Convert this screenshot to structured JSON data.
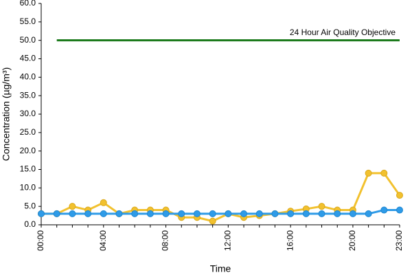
{
  "chart_data": {
    "type": "line",
    "x_label": "Time",
    "y_label": "Concentration (µg/m³)",
    "categories": [
      "00:00",
      null,
      null,
      null,
      "04:00",
      null,
      null,
      null,
      "08:00",
      null,
      null,
      null,
      "12:00",
      null,
      null,
      null,
      "16:00",
      null,
      null,
      null,
      "20:00",
      null,
      null,
      "23:00"
    ],
    "series": [
      {
        "color": "#f2c12e",
        "values": [
          3,
          3,
          5,
          4,
          6,
          3,
          4,
          4,
          4,
          2,
          2,
          1,
          3,
          2,
          2.5,
          3,
          3.7,
          4.3,
          5,
          4,
          4,
          14,
          14,
          8
        ]
      },
      {
        "color": "#2e9be8",
        "values": [
          3,
          3,
          3,
          3,
          3,
          3,
          3,
          3,
          3,
          3,
          3,
          3,
          3,
          3,
          3,
          3,
          3,
          3,
          3,
          3,
          3,
          3,
          4,
          4
        ]
      }
    ],
    "objective": {
      "label": "24 Hour Air Quality Objective",
      "value": 50,
      "color": "#1a7a1a"
    },
    "ylim": [
      0,
      60
    ],
    "yticks": [
      {
        "value": 0,
        "label": "0.0"
      },
      {
        "value": 5,
        "label": "5.0"
      },
      {
        "value": 10,
        "label": "10.0"
      },
      {
        "value": 15,
        "label": "15.0"
      },
      {
        "value": 20,
        "label": "20.0"
      },
      {
        "value": 25,
        "label": "25.0"
      },
      {
        "value": 30,
        "label": "30.0"
      },
      {
        "value": 35,
        "label": "35.0"
      },
      {
        "value": 40,
        "label": "40.0"
      },
      {
        "value": 45,
        "label": "45.0"
      },
      {
        "value": 50,
        "label": "50.0"
      },
      {
        "value": 55,
        "label": "55.0"
      },
      {
        "value": 60,
        "label": "60.0"
      }
    ]
  }
}
